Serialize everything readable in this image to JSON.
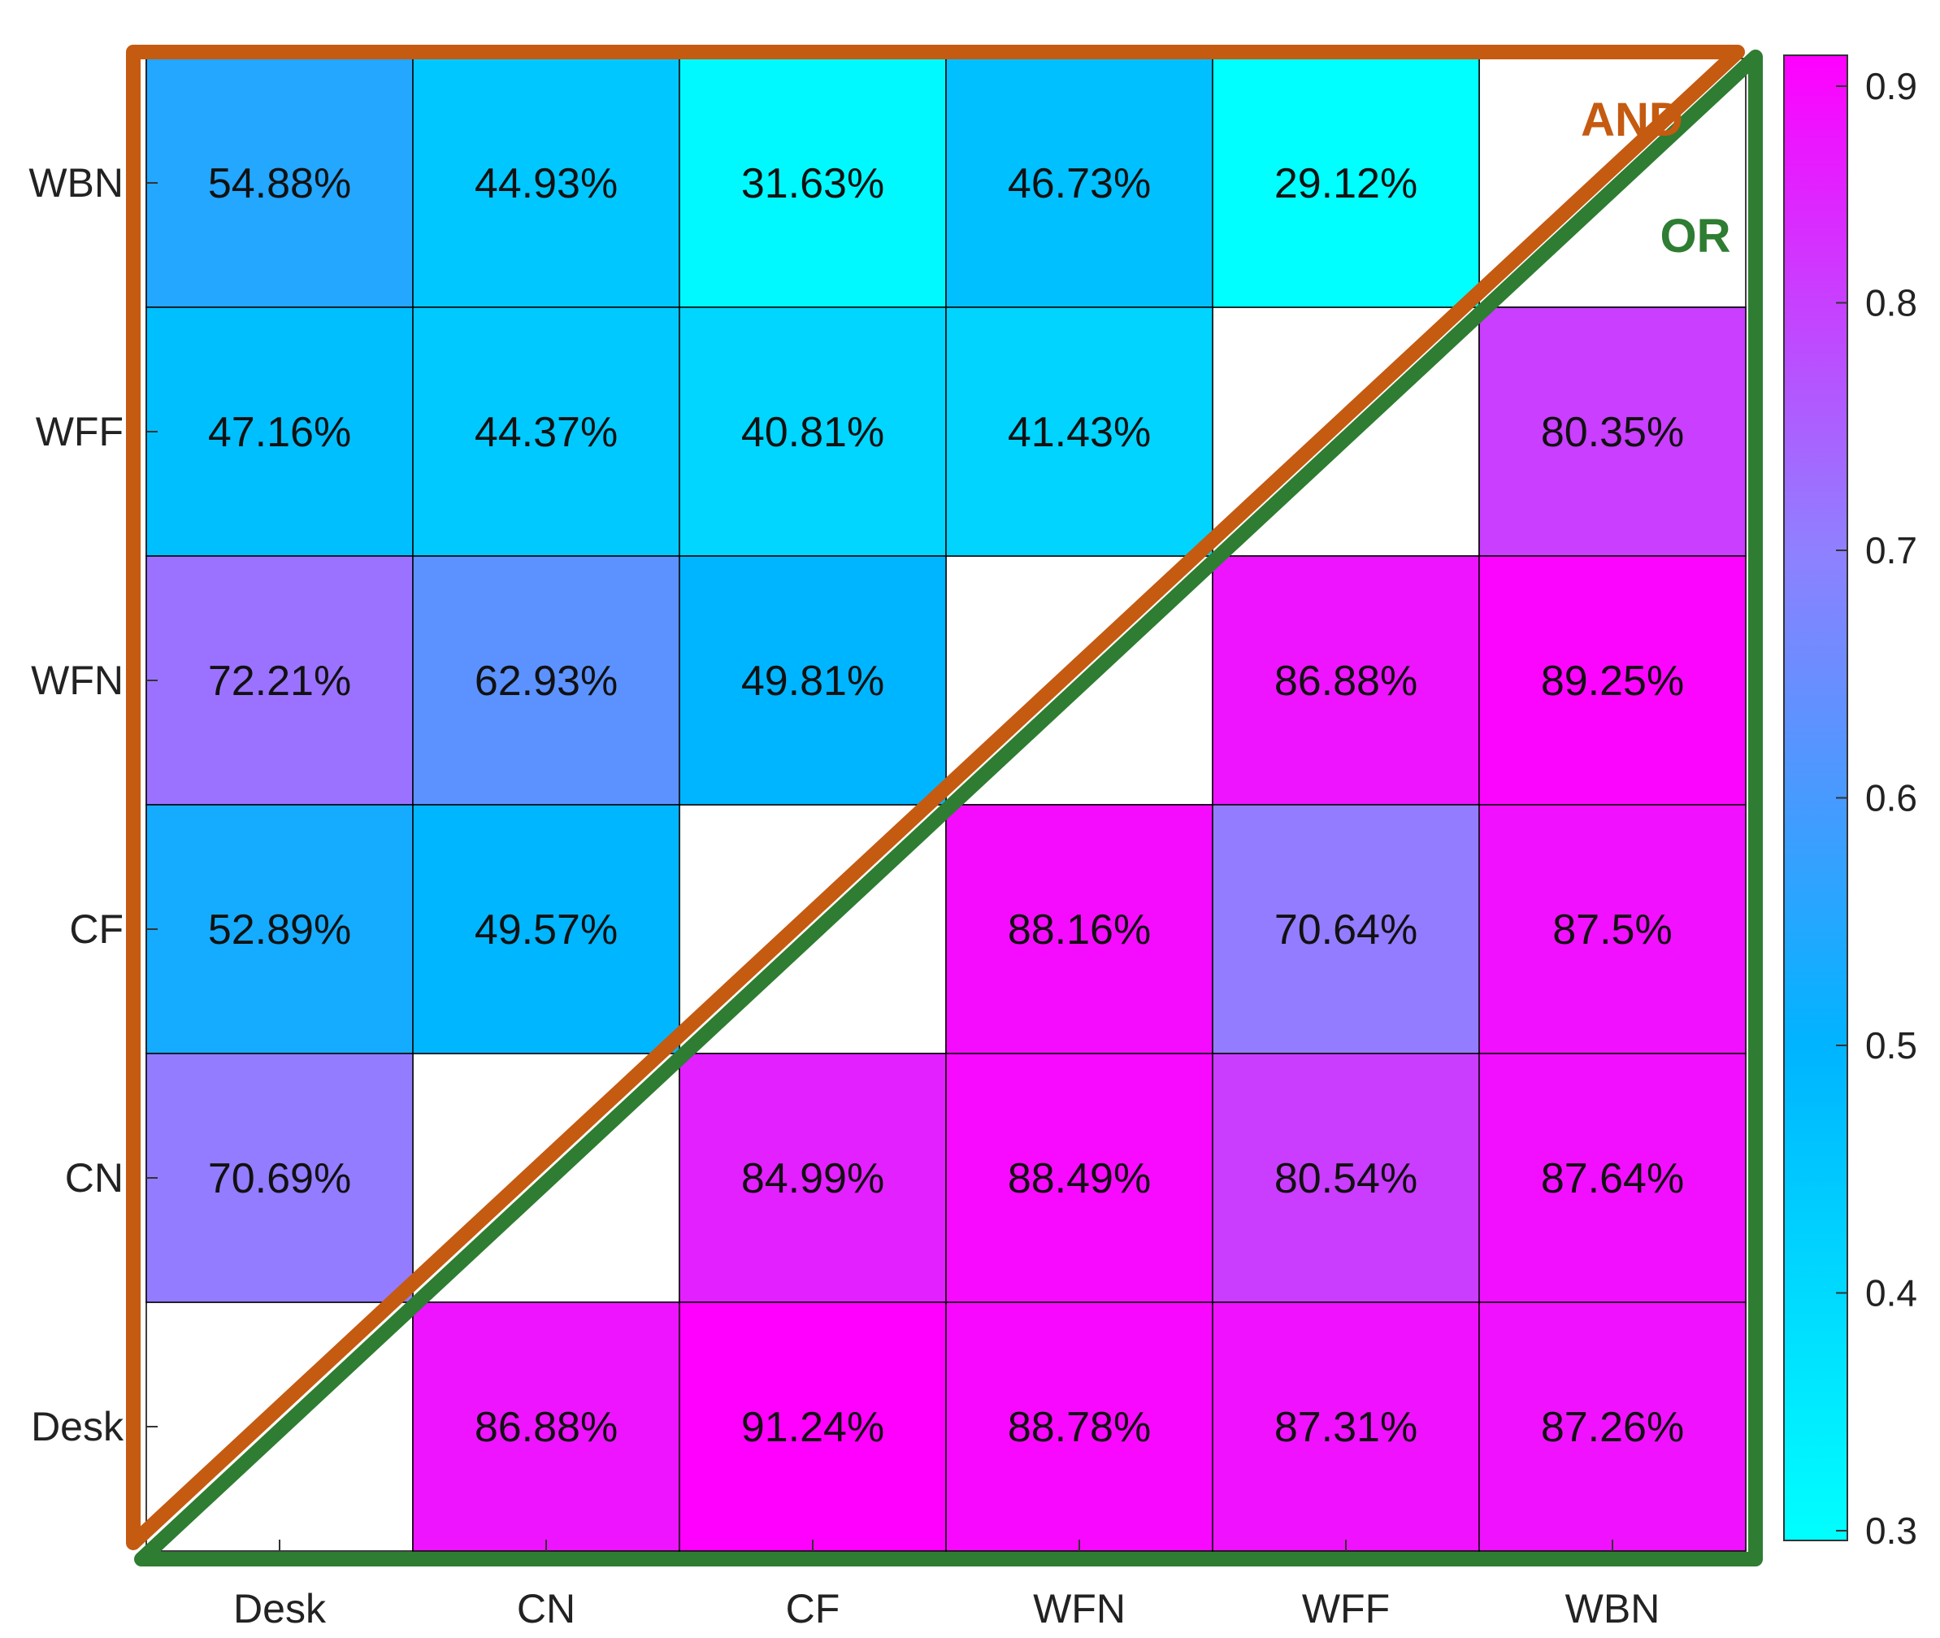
{
  "chart_data": {
    "type": "heatmap",
    "title": "",
    "xlabel": "",
    "ylabel": "",
    "x_categories": [
      "Desk",
      "CN",
      "CF",
      "WFN",
      "WFF",
      "WBN"
    ],
    "y_categories": [
      "Desk",
      "CN",
      "CF",
      "WFN",
      "WFF",
      "WBN"
    ],
    "y_order": "bottom-to-top",
    "value_format": "percent",
    "cells": [
      {
        "x": "Desk",
        "y": "WBN",
        "value": 54.88,
        "label": "54.88%"
      },
      {
        "x": "CN",
        "y": "WBN",
        "value": 44.93,
        "label": "44.93%"
      },
      {
        "x": "CF",
        "y": "WBN",
        "value": 31.63,
        "label": "31.63%"
      },
      {
        "x": "WFN",
        "y": "WBN",
        "value": 46.73,
        "label": "46.73%"
      },
      {
        "x": "WFF",
        "y": "WBN",
        "value": 29.12,
        "label": "29.12%"
      },
      {
        "x": "Desk",
        "y": "WFF",
        "value": 47.16,
        "label": "47.16%"
      },
      {
        "x": "CN",
        "y": "WFF",
        "value": 44.37,
        "label": "44.37%"
      },
      {
        "x": "CF",
        "y": "WFF",
        "value": 40.81,
        "label": "40.81%"
      },
      {
        "x": "WFN",
        "y": "WFF",
        "value": 41.43,
        "label": "41.43%"
      },
      {
        "x": "WBN",
        "y": "WFF",
        "value": 80.35,
        "label": "80.35%"
      },
      {
        "x": "Desk",
        "y": "WFN",
        "value": 72.21,
        "label": "72.21%"
      },
      {
        "x": "CN",
        "y": "WFN",
        "value": 62.93,
        "label": "62.93%"
      },
      {
        "x": "CF",
        "y": "WFN",
        "value": 49.81,
        "label": "49.81%"
      },
      {
        "x": "WFF",
        "y": "WFN",
        "value": 86.88,
        "label": "86.88%"
      },
      {
        "x": "WBN",
        "y": "WFN",
        "value": 89.25,
        "label": "89.25%"
      },
      {
        "x": "Desk",
        "y": "CF",
        "value": 52.89,
        "label": "52.89%"
      },
      {
        "x": "CN",
        "y": "CF",
        "value": 49.57,
        "label": "49.57%"
      },
      {
        "x": "WFN",
        "y": "CF",
        "value": 88.16,
        "label": "88.16%"
      },
      {
        "x": "WFF",
        "y": "CF",
        "value": 70.64,
        "label": "70.64%"
      },
      {
        "x": "WBN",
        "y": "CF",
        "value": 87.5,
        "label": "87.5%"
      },
      {
        "x": "Desk",
        "y": "CN",
        "value": 70.69,
        "label": "70.69%"
      },
      {
        "x": "CF",
        "y": "CN",
        "value": 84.99,
        "label": "84.99%"
      },
      {
        "x": "WFN",
        "y": "CN",
        "value": 88.49,
        "label": "88.49%"
      },
      {
        "x": "WFF",
        "y": "CN",
        "value": 80.54,
        "label": "80.54%"
      },
      {
        "x": "WBN",
        "y": "CN",
        "value": 87.64,
        "label": "87.64%"
      },
      {
        "x": "CN",
        "y": "Desk",
        "value": 86.88,
        "label": "86.88%"
      },
      {
        "x": "CF",
        "y": "Desk",
        "value": 91.24,
        "label": "91.24%"
      },
      {
        "x": "WFN",
        "y": "Desk",
        "value": 88.78,
        "label": "88.78%"
      },
      {
        "x": "WFF",
        "y": "Desk",
        "value": 87.31,
        "label": "87.31%"
      },
      {
        "x": "WBN",
        "y": "Desk",
        "value": 87.26,
        "label": "87.26%"
      }
    ],
    "colorbar": {
      "range": [
        0.3,
        0.9
      ],
      "ticks": [
        "0.3",
        "0.4",
        "0.5",
        "0.6",
        "0.7",
        "0.8",
        "0.9"
      ],
      "colormap": [
        "#00ffff",
        "#00b4ff",
        "#8f80ff",
        "#ff00ff"
      ]
    },
    "annotations": [
      {
        "text": "AND",
        "region": "upper-left triangle",
        "color": "#c55a11"
      },
      {
        "text": "OR",
        "region": "lower-right triangle",
        "color": "#2e7d32"
      }
    ],
    "grid": true,
    "legend": "colorbar-right"
  }
}
